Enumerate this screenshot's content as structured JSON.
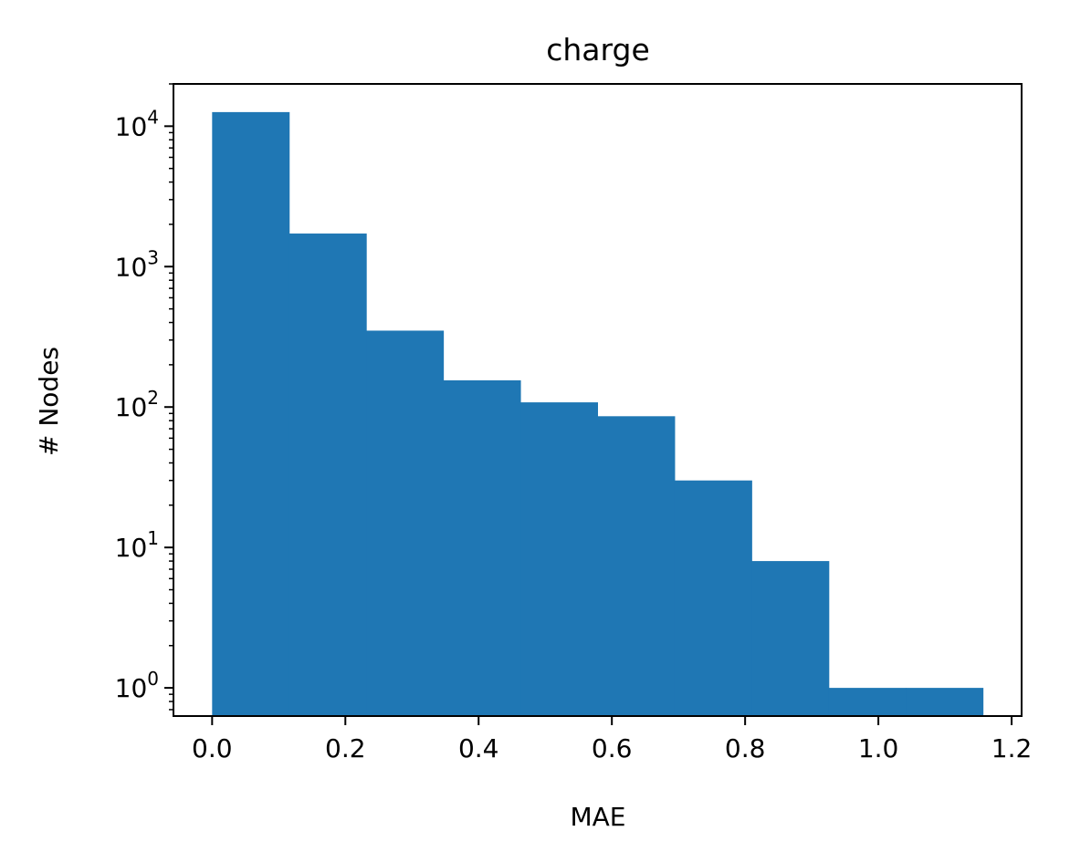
{
  "chart_data": {
    "type": "bar",
    "title": "charge",
    "xlabel": "MAE",
    "ylabel": "# Nodes",
    "yscale": "log",
    "xlim": [
      -0.058,
      1.215
    ],
    "ylim": [
      0.63,
      20000
    ],
    "grid": false,
    "color": "#1f77b4",
    "bin_edges": [
      0.0,
      0.1157,
      0.2314,
      0.3471,
      0.4628,
      0.5785,
      0.6942,
      0.8099,
      0.9256,
      1.0413,
      1.157
    ],
    "values": [
      12600,
      1720,
      350,
      155,
      108,
      86,
      30,
      8,
      1,
      1
    ],
    "x_ticks": [
      {
        "value": 0.0,
        "label": "0.0"
      },
      {
        "value": 0.2,
        "label": "0.2"
      },
      {
        "value": 0.4,
        "label": "0.4"
      },
      {
        "value": 0.6,
        "label": "0.6"
      },
      {
        "value": 0.8,
        "label": "0.8"
      },
      {
        "value": 1.0,
        "label": "1.0"
      },
      {
        "value": 1.2,
        "label": "1.2"
      }
    ],
    "y_ticks": [
      {
        "value": 1,
        "base": "10",
        "exp": "0"
      },
      {
        "value": 10,
        "base": "10",
        "exp": "1"
      },
      {
        "value": 100,
        "base": "10",
        "exp": "2"
      },
      {
        "value": 1000,
        "base": "10",
        "exp": "3"
      },
      {
        "value": 10000,
        "base": "10",
        "exp": "4"
      }
    ]
  }
}
